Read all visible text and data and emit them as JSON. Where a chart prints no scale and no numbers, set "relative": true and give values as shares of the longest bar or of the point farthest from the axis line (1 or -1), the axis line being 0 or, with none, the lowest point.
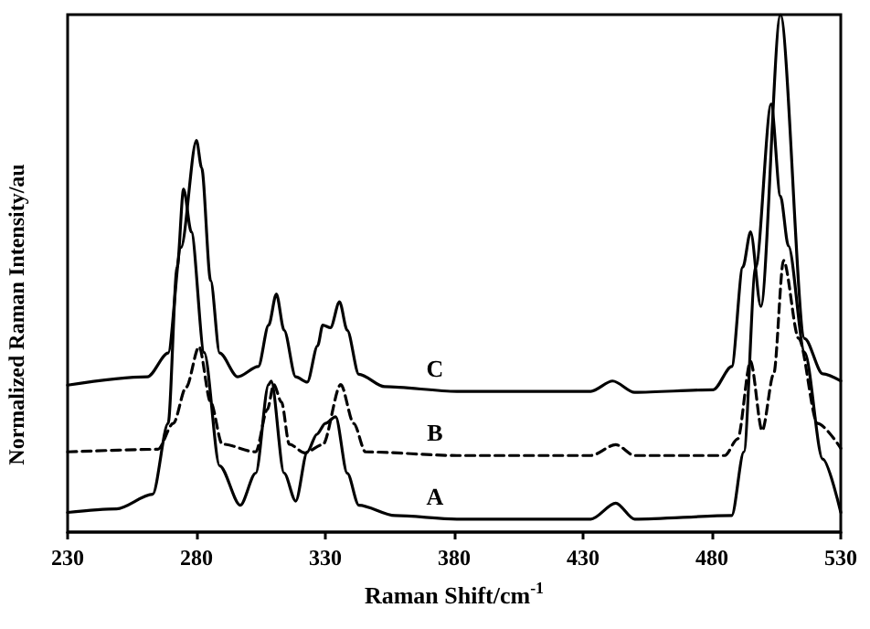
{
  "chart_data": {
    "type": "line",
    "relative": true,
    "xlabel": "Raman Shift/cm$^{-1}$",
    "ylabel": "Normalized Raman Intensity/au",
    "xlim": [
      230,
      530
    ],
    "xticks": [
      230,
      280,
      330,
      380,
      430,
      480,
      530
    ],
    "tick_labels": "x",
    "grid": false,
    "legend": false,
    "marker": "none",
    "series": [
      {
        "name": "C",
        "color": "#000000",
        "line_style": "solid",
        "x": [
          230,
          261,
          269,
          274,
          280,
          282,
          285.5,
          289,
          296,
          304,
          308,
          311,
          314,
          318.5,
          323,
          327,
          329,
          332,
          335.5,
          338.5,
          343,
          353,
          381,
          433,
          441.5,
          450,
          480.5,
          487.7,
          492,
          495,
          499,
          506.6,
          516,
          523,
          530
        ],
        "values": [
          0.284,
          0.3,
          0.346,
          0.55,
          0.757,
          0.704,
          0.486,
          0.346,
          0.3,
          0.32,
          0.4,
          0.46,
          0.39,
          0.3,
          0.29,
          0.36,
          0.4,
          0.395,
          0.445,
          0.39,
          0.305,
          0.281,
          0.272,
          0.272,
          0.292,
          0.27,
          0.275,
          0.32,
          0.512,
          0.58,
          0.436,
          1,
          0.374,
          0.306,
          0.292
        ]
      },
      {
        "name": "B",
        "color": "#000000",
        "line_style": "dashed",
        "x": [
          230,
          265,
          271,
          276,
          281,
          285.5,
          290,
          303,
          307.5,
          310,
          313,
          316,
          322,
          329,
          336,
          341,
          345.6,
          381,
          433,
          442.7,
          450,
          485,
          490,
          495,
          499.5,
          504,
          507.8,
          513.7,
          521,
          530
        ],
        "values": [
          0.155,
          0.16,
          0.21,
          0.28,
          0.358,
          0.251,
          0.17,
          0.155,
          0.237,
          0.285,
          0.251,
          0.17,
          0.153,
          0.169,
          0.285,
          0.21,
          0.155,
          0.148,
          0.148,
          0.169,
          0.148,
          0.148,
          0.18,
          0.33,
          0.196,
          0.306,
          0.525,
          0.374,
          0.21,
          0.162
        ]
      },
      {
        "name": "A",
        "color": "#000000",
        "line_style": "solid",
        "x": [
          230,
          249,
          263,
          269,
          272.5,
          275,
          278,
          283,
          289,
          297,
          303,
          308,
          309,
          314,
          318.5,
          323,
          326.7,
          330,
          334,
          338.5,
          343,
          357,
          381,
          433,
          442.7,
          450,
          487.7,
          492.4,
          497,
          503,
          506.6,
          509.7,
          516,
          523,
          530
        ],
        "values": [
          0.038,
          0.045,
          0.073,
          0.21,
          0.512,
          0.663,
          0.58,
          0.347,
          0.128,
          0.052,
          0.114,
          0.285,
          0.292,
          0.114,
          0.06,
          0.155,
          0.189,
          0.21,
          0.223,
          0.114,
          0.052,
          0.032,
          0.025,
          0.025,
          0.056,
          0.025,
          0.032,
          0.155,
          0.512,
          0.827,
          0.649,
          0.553,
          0.347,
          0.141,
          0.038
        ]
      }
    ]
  }
}
